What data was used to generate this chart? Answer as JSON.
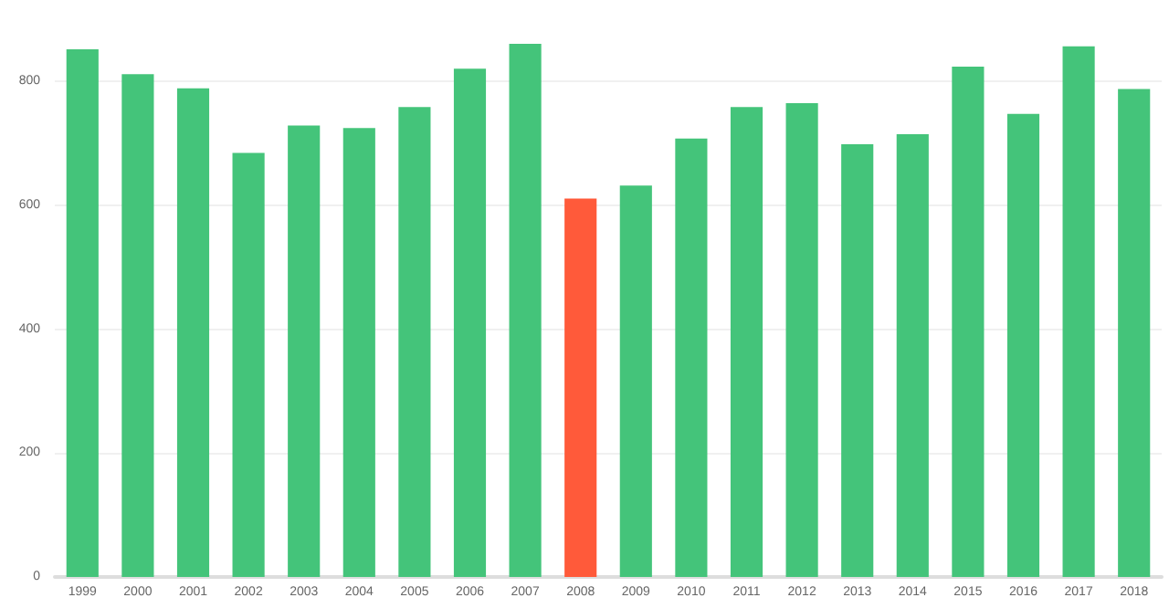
{
  "chart_data": {
    "type": "bar",
    "categories": [
      "1999",
      "2000",
      "2001",
      "2002",
      "2003",
      "2004",
      "2005",
      "2006",
      "2007",
      "2008",
      "2009",
      "2010",
      "2011",
      "2012",
      "2013",
      "2014",
      "2015",
      "2016",
      "2017",
      "2018"
    ],
    "values": [
      852,
      812,
      789,
      685,
      729,
      725,
      759,
      821,
      861,
      611,
      632,
      708,
      759,
      765,
      699,
      715,
      824,
      748,
      857,
      788
    ],
    "colors": [
      "#44c47a",
      "#44c47a",
      "#44c47a",
      "#44c47a",
      "#44c47a",
      "#44c47a",
      "#44c47a",
      "#44c47a",
      "#44c47a",
      "#ff5a3a",
      "#44c47a",
      "#44c47a",
      "#44c47a",
      "#44c47a",
      "#44c47a",
      "#44c47a",
      "#44c47a",
      "#44c47a",
      "#44c47a",
      "#44c47a"
    ],
    "ylim": [
      0,
      861
    ],
    "yticks": [
      0,
      200,
      400,
      600,
      800
    ],
    "grid": "y"
  }
}
